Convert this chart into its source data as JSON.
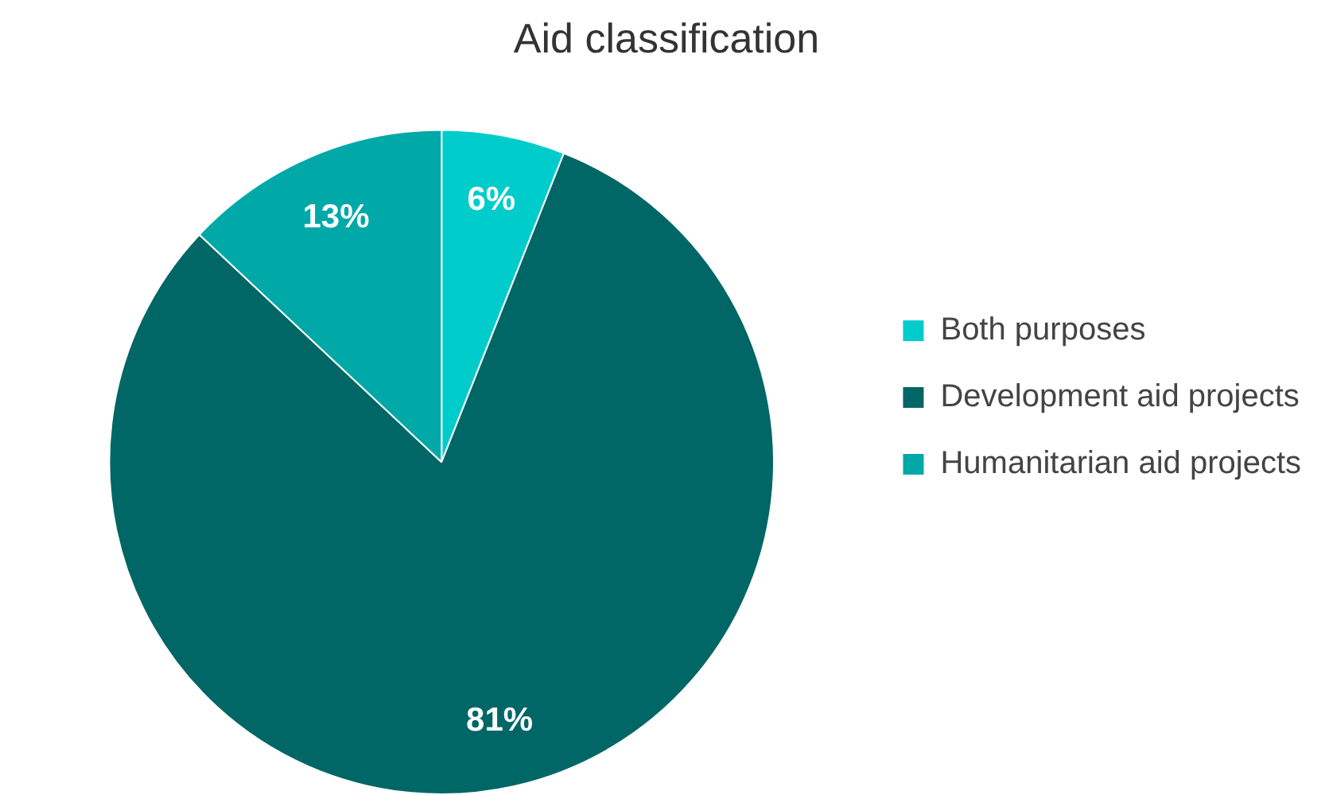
{
  "chart_data": {
    "type": "pie",
    "title": "Aid classification",
    "categories": [
      "Both purposes",
      "Development aid projects",
      "Humanitarian aid projects"
    ],
    "values": [
      6,
      81,
      13
    ],
    "colors": [
      "#00cccc",
      "#006666",
      "#00a8a8"
    ],
    "value_labels": [
      "6%",
      "81%",
      "13%"
    ],
    "legend": "right"
  }
}
